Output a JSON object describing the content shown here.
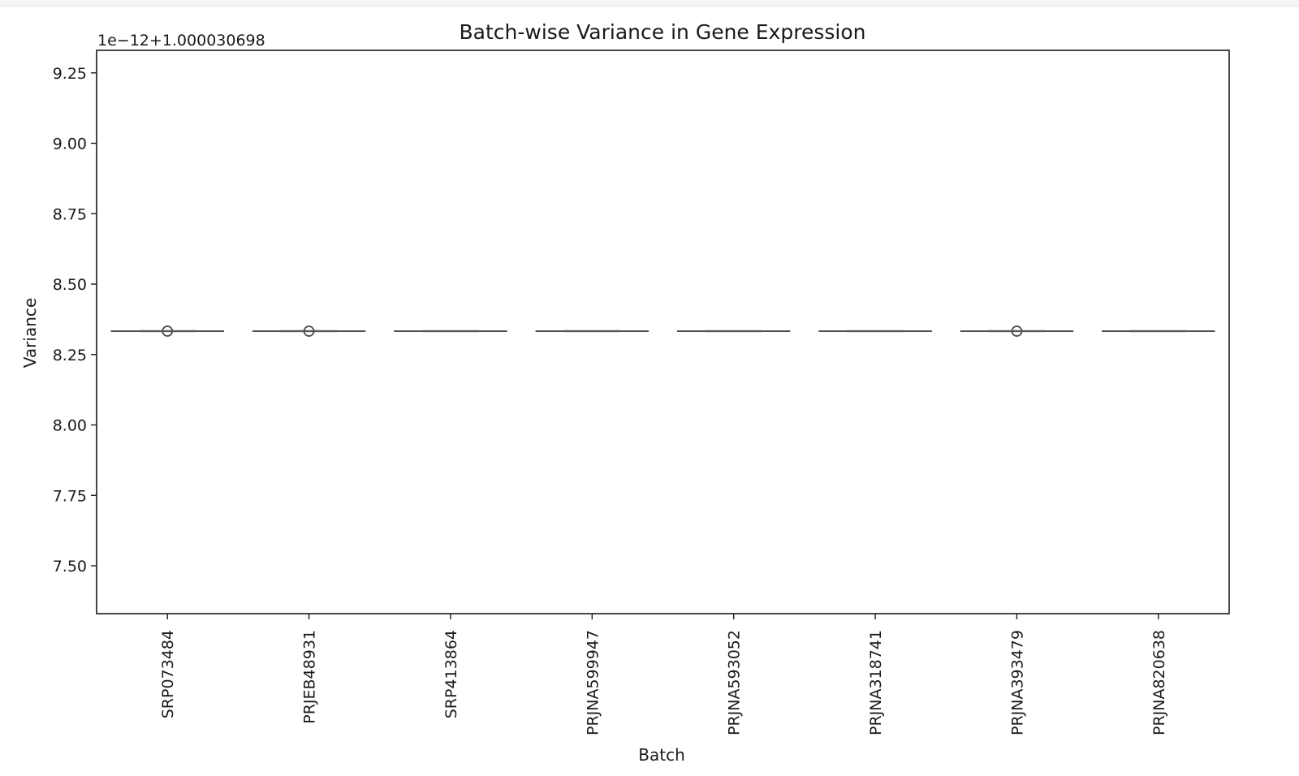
{
  "chart_data": {
    "type": "box",
    "title": "Batch-wise Variance in Gene Expression",
    "xlabel": "Batch",
    "ylabel": "Variance",
    "offset_label": "1e−12+1.000030698",
    "ylim": [
      7.33,
      9.33
    ],
    "yticks": [
      7.5,
      7.75,
      8.0,
      8.25,
      8.5,
      8.75,
      9.0,
      9.25
    ],
    "ytick_labels": [
      "7.50",
      "7.75",
      "8.00",
      "8.25",
      "8.50",
      "8.75",
      "9.00",
      "9.25"
    ],
    "categories": [
      "SRP073484",
      "PRJEB48931",
      "SRP413864",
      "PRJNA599947",
      "PRJNA593052",
      "PRJNA318741",
      "PRJNA393479",
      "PRJNA820638"
    ],
    "median": [
      8.333,
      8.333,
      8.333,
      8.333,
      8.333,
      8.333,
      8.333,
      8.333
    ],
    "outliers": [
      [
        8.333
      ],
      [
        8.333
      ],
      [],
      [],
      [],
      [],
      [
        8.333
      ],
      []
    ],
    "color": "#4d4d4d",
    "grid": false
  }
}
